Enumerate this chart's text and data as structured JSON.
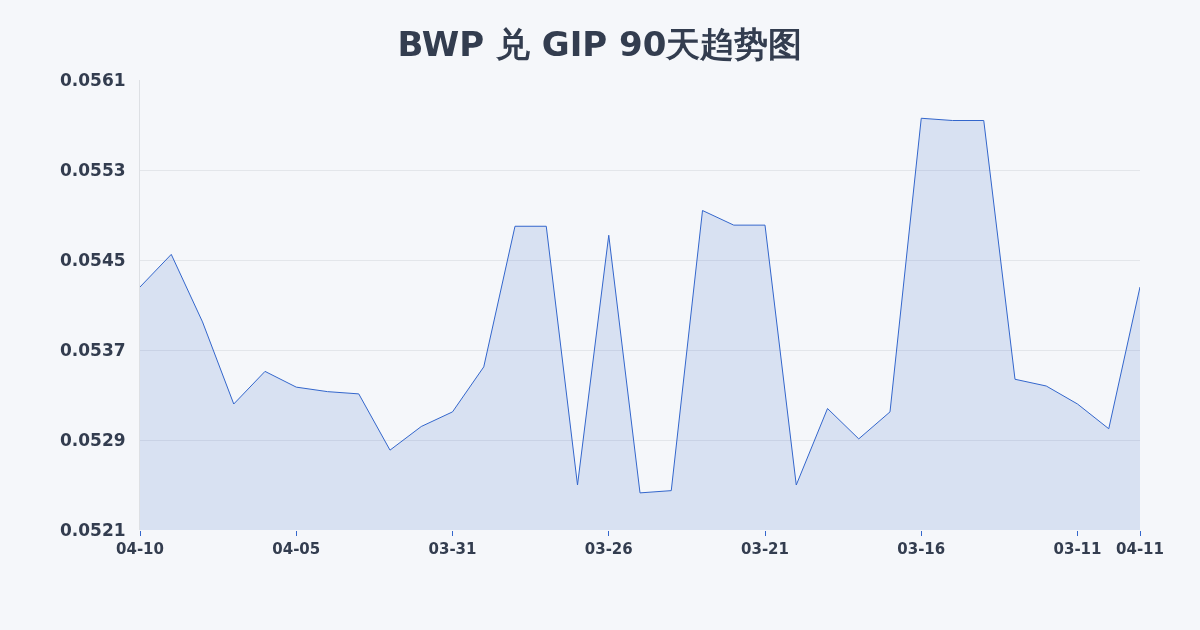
{
  "chart_data": {
    "type": "area",
    "title": "BWP 兑 GIP 90天趋势图",
    "categories": [
      "04-10",
      null,
      null,
      null,
      null,
      "04-05",
      null,
      null,
      null,
      null,
      "03-31",
      null,
      null,
      null,
      null,
      "03-26",
      null,
      null,
      null,
      null,
      "03-21",
      null,
      null,
      null,
      null,
      "03-16",
      null,
      null,
      null,
      null,
      "03-11",
      null,
      "04-11"
    ],
    "series": [
      {
        "color": "#3366cc",
        "values": [
          0.05426,
          0.05455,
          0.05395,
          0.05322,
          0.05351,
          0.05337,
          0.05333,
          0.05331,
          0.05281,
          0.05302,
          0.05315,
          0.05355,
          0.0548,
          0.0548,
          0.0525,
          0.05472,
          0.05243,
          0.05245,
          0.05494,
          0.05481,
          0.05481,
          0.0525,
          0.05318,
          0.05291,
          0.05315,
          0.05576,
          0.05574,
          0.05574,
          0.05344,
          0.05338,
          0.05322,
          0.053,
          0.05426
        ]
      }
    ],
    "ylim": [
      0.0521,
      0.0561
    ],
    "yticks": [
      0.0521,
      0.0529,
      0.0537,
      0.0545,
      0.0553,
      0.0561
    ],
    "grid": "y",
    "marker": "none",
    "line_style": "solid"
  }
}
